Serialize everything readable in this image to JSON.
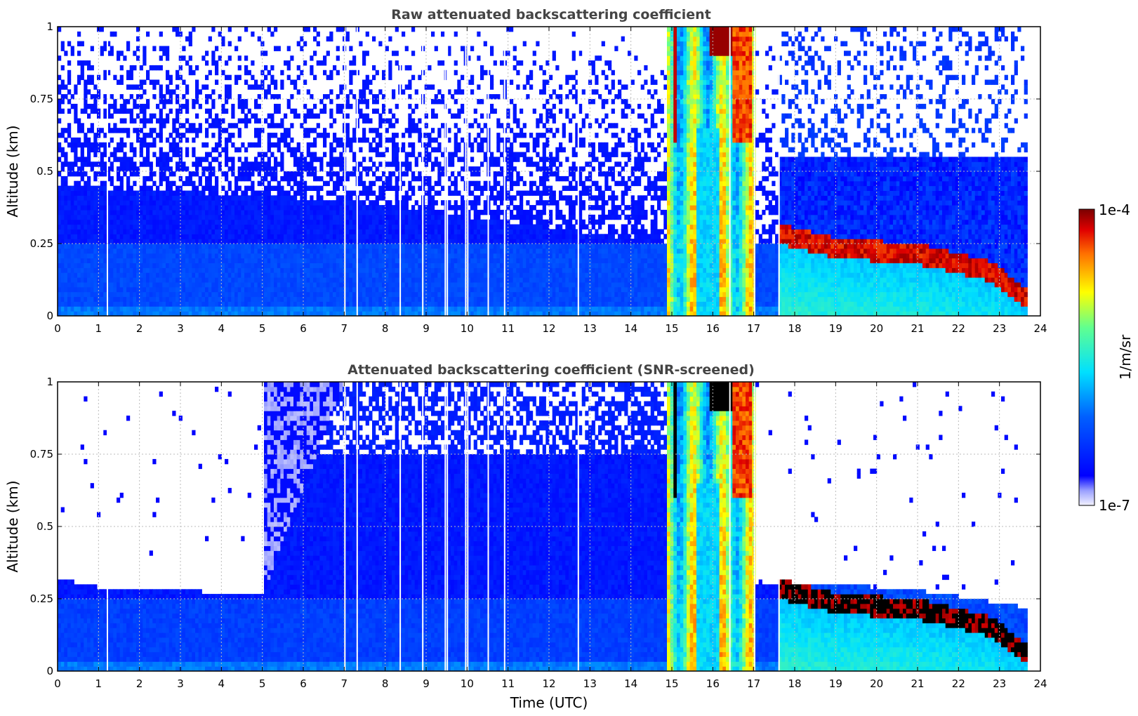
{
  "figure": {
    "colorbar": {
      "label": "1/m/sr",
      "max_label": "1e-4",
      "min_label": "1e-7"
    }
  },
  "chart_data": [
    {
      "type": "heatmap",
      "title": "Raw attenuated backscattering coefficient",
      "xlabel": "",
      "ylabel": "Altitude (km)",
      "xlim": [
        0,
        24
      ],
      "ylim": [
        0,
        1
      ],
      "x_ticks": [
        "0",
        "1",
        "2",
        "3",
        "4",
        "5",
        "6",
        "7",
        "8",
        "9",
        "10",
        "11",
        "12",
        "13",
        "14",
        "15",
        "16",
        "17",
        "18",
        "19",
        "20",
        "21",
        "22",
        "23",
        "24"
      ],
      "y_ticks": [
        "0",
        "0.25",
        "0.5",
        "0.75",
        "1"
      ],
      "grid": true,
      "color_scale": {
        "type": "log",
        "min": 1e-07,
        "max": 0.0001,
        "unit": "1/m/sr"
      },
      "data_end_time": 23.7,
      "gap_times": [
        1.2,
        7.0,
        7.3,
        8.35,
        8.9,
        9.45,
        9.5,
        9.95,
        10.0,
        10.5,
        10.9,
        12.7,
        16.4,
        17.0,
        17.6
      ],
      "features": [
        {
          "description": "boundary layer",
          "x": [
            0,
            14.9
          ],
          "top_km": [
            0.45,
            0.25
          ]
        },
        {
          "description": "thick cloud / precipitation",
          "x": [
            14.9,
            17.0
          ],
          "y": [
            0,
            1
          ]
        },
        {
          "description": "low cloud layer",
          "x": [
            17.6,
            23.7
          ],
          "base_km": [
            0.25,
            0.05
          ]
        }
      ]
    },
    {
      "type": "heatmap",
      "title": "Attenuated backscattering coefficient (SNR-screened)",
      "xlabel": "Time (UTC)",
      "ylabel": "Altitude (km)",
      "xlim": [
        0,
        24
      ],
      "ylim": [
        0,
        1
      ],
      "x_ticks": [
        "0",
        "1",
        "2",
        "3",
        "4",
        "5",
        "6",
        "7",
        "8",
        "9",
        "10",
        "11",
        "12",
        "13",
        "14",
        "15",
        "16",
        "17",
        "18",
        "19",
        "20",
        "21",
        "22",
        "23",
        "24"
      ],
      "y_ticks": [
        "0",
        "0.25",
        "0.5",
        "0.75",
        "1"
      ],
      "grid": true,
      "color_scale": {
        "type": "log",
        "min": 1e-07,
        "max": 0.0001,
        "unit": "1/m/sr"
      },
      "data_end_time": 23.7,
      "screened_top_km": [
        [
          0,
          0.32
        ],
        [
          1,
          0.29
        ],
        [
          3,
          0.28
        ],
        [
          5,
          0.26
        ],
        [
          5.5,
          0.45
        ],
        [
          7,
          1.0
        ],
        [
          14.9,
          1.0
        ],
        [
          17.0,
          0.3
        ],
        [
          19,
          0.3
        ],
        [
          21,
          0.28
        ],
        [
          23.7,
          0.22
        ]
      ]
    }
  ]
}
